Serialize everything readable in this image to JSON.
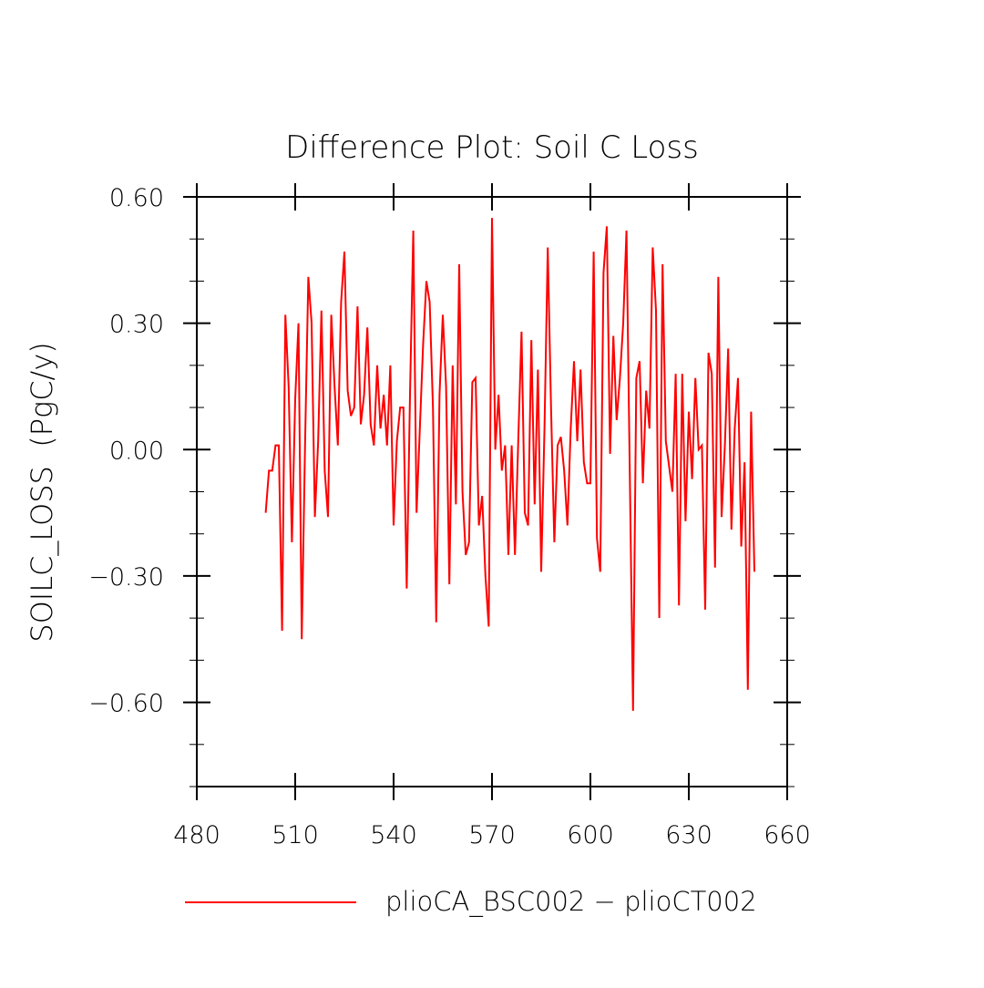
{
  "chart_data": {
    "type": "line",
    "title": "Difference Plot: Soil C Loss",
    "xlabel": "",
    "ylabel": "SOILC_LOSS  (PgC/y)",
    "xlim": [
      480,
      660
    ],
    "ylim": [
      -0.8,
      0.6
    ],
    "xticks": [
      480,
      510,
      540,
      570,
      600,
      630,
      660
    ],
    "xtick_labels": [
      "480",
      "510",
      "540",
      "570",
      "600",
      "630",
      "660"
    ],
    "yticks": [
      0.6,
      0.3,
      0.0,
      -0.3,
      -0.6
    ],
    "ytick_labels": [
      "0.60",
      "0.30",
      "0.00",
      "−0.30",
      "−0.60"
    ],
    "grid": false,
    "legend_position": "bottom",
    "series": [
      {
        "name": "plioCA_BSC002 − plioCT002",
        "color": "#ff0000",
        "x": [
          501,
          502,
          503,
          504,
          505,
          506,
          507,
          508,
          509,
          510,
          511,
          512,
          513,
          514,
          515,
          516,
          517,
          518,
          519,
          520,
          521,
          522,
          523,
          524,
          525,
          526,
          527,
          528,
          529,
          530,
          531,
          532,
          533,
          534,
          535,
          536,
          537,
          538,
          539,
          540,
          541,
          542,
          543,
          544,
          545,
          546,
          547,
          548,
          549,
          550,
          551,
          552,
          553,
          554,
          555,
          556,
          557,
          558,
          559,
          560,
          561,
          562,
          563,
          564,
          565,
          566,
          567,
          568,
          569,
          570,
          571,
          572,
          573,
          574,
          575,
          576,
          577,
          578,
          579,
          580,
          581,
          582,
          583,
          584,
          585,
          586,
          587,
          588,
          589,
          590,
          591,
          592,
          593,
          594,
          595,
          596,
          597,
          598,
          599,
          600,
          601,
          602,
          603,
          604,
          605,
          606,
          607,
          608,
          609,
          610,
          611,
          612,
          613,
          614,
          615,
          616,
          617,
          618,
          619,
          620,
          621,
          622,
          623,
          624,
          625,
          626,
          627,
          628,
          629,
          630,
          631,
          632,
          633,
          634,
          635,
          636,
          637,
          638,
          639,
          640,
          641,
          642,
          643,
          644,
          645,
          646,
          647,
          648,
          649,
          650
        ],
        "values": [
          -0.15,
          -0.05,
          -0.05,
          0.01,
          0.01,
          -0.43,
          0.32,
          0.15,
          -0.22,
          0.12,
          0.3,
          -0.45,
          0.01,
          0.41,
          0.3,
          -0.16,
          0.02,
          0.33,
          -0.05,
          -0.16,
          0.32,
          0.15,
          0.01,
          0.35,
          0.47,
          0.14,
          0.08,
          0.1,
          0.34,
          0.06,
          0.13,
          0.29,
          0.06,
          0.01,
          0.2,
          0.05,
          0.13,
          0.01,
          0.2,
          -0.18,
          0.02,
          0.1,
          0.1,
          -0.33,
          0.13,
          0.52,
          -0.15,
          0.05,
          0.25,
          0.4,
          0.35,
          0.1,
          -0.41,
          0.13,
          0.32,
          0.15,
          -0.32,
          0.2,
          -0.13,
          0.44,
          -0.1,
          -0.25,
          -0.22,
          0.16,
          0.17,
          -0.18,
          -0.11,
          -0.3,
          -0.42,
          0.55,
          0.0,
          0.13,
          -0.05,
          0.01,
          -0.25,
          0.01,
          -0.25,
          0.02,
          0.28,
          -0.15,
          -0.18,
          0.26,
          -0.13,
          0.19,
          -0.29,
          0.05,
          0.48,
          0.1,
          -0.22,
          0.01,
          0.03,
          -0.05,
          -0.18,
          0.05,
          0.21,
          0.02,
          0.19,
          -0.03,
          -0.08,
          -0.08,
          0.47,
          -0.21,
          -0.29,
          0.42,
          0.53,
          -0.01,
          0.27,
          0.07,
          0.17,
          0.3,
          0.52,
          -0.05,
          -0.62,
          0.17,
          0.21,
          -0.08,
          0.14,
          0.05,
          0.48,
          0.33,
          -0.4,
          0.44,
          0.02,
          -0.04,
          -0.1,
          0.18,
          -0.37,
          0.18,
          -0.17,
          0.09,
          -0.07,
          0.17,
          0.0,
          0.01,
          -0.38,
          0.23,
          0.18,
          -0.28,
          0.41,
          -0.16,
          0.01,
          0.24,
          -0.19,
          0.05,
          0.17,
          -0.23,
          -0.03,
          -0.57,
          0.09,
          -0.29
        ]
      }
    ]
  }
}
